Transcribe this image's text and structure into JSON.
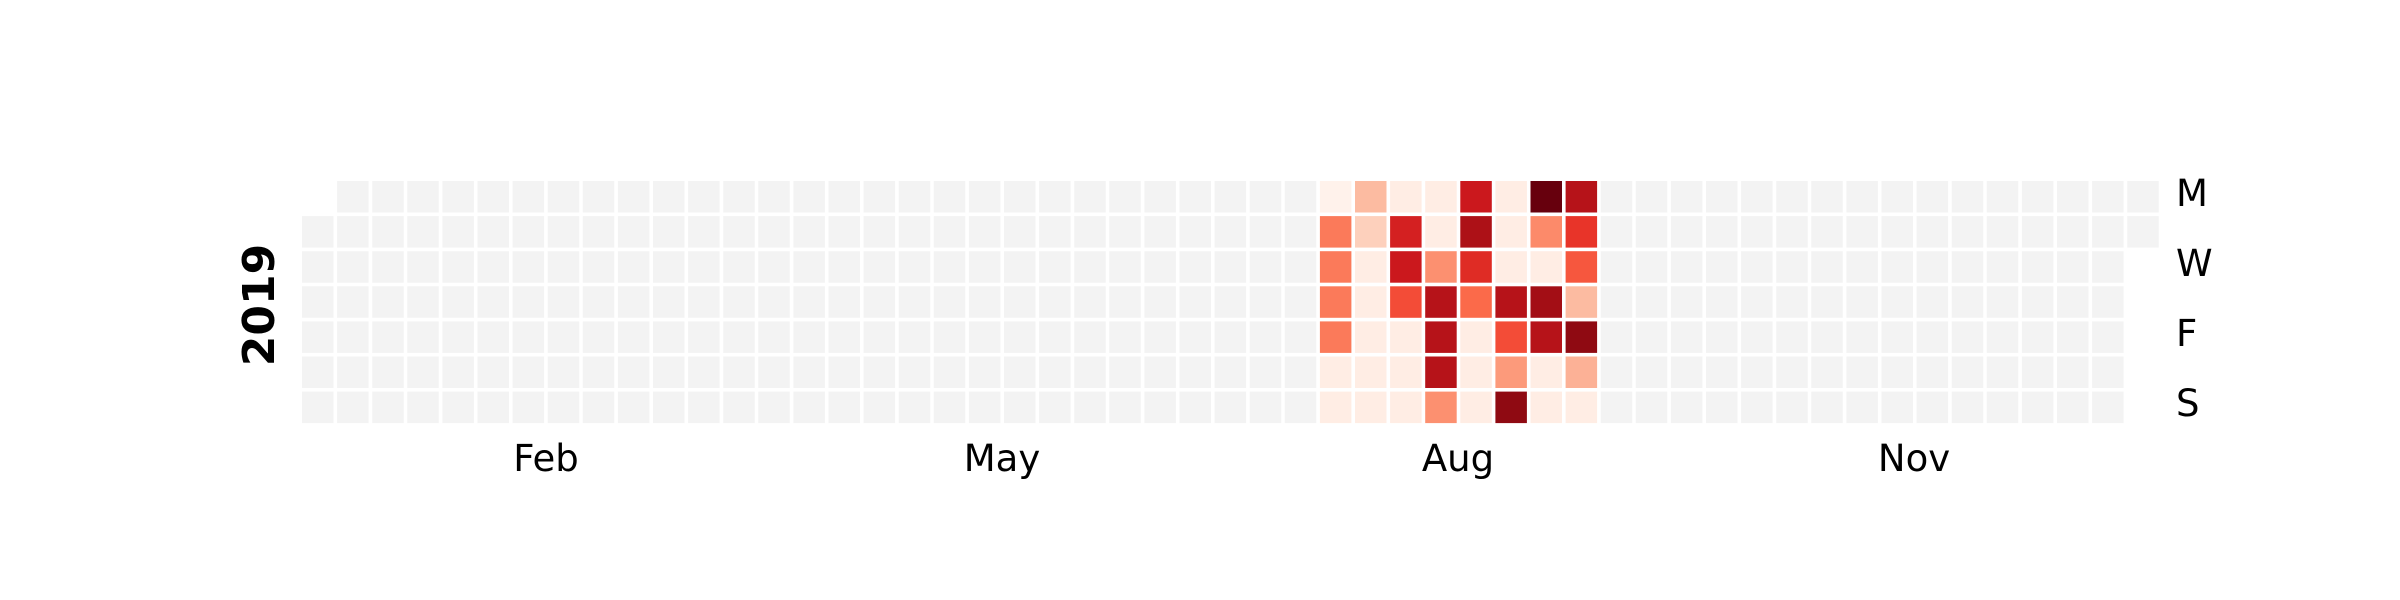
{
  "chart_data": {
    "type": "heatmap",
    "title": "",
    "year": "2019",
    "month_labels": [
      "Feb",
      "May",
      "Aug",
      "Nov"
    ],
    "day_labels": [
      "M",
      "W",
      "F",
      "S"
    ],
    "colormap": "Reds",
    "empty_color": "#f3f3f3",
    "active_weeks": {
      "start_week": 29,
      "rows": [
        [
          0.02,
          0.25,
          0.05,
          0.05,
          0.75,
          0.05,
          1.0,
          0.82
        ],
        [
          0.45,
          0.18,
          0.72,
          0.05,
          0.85,
          0.05,
          0.4,
          0.65
        ],
        [
          0.45,
          0.05,
          0.75,
          0.38,
          0.68,
          0.05,
          0.05,
          0.55
        ],
        [
          0.45,
          0.05,
          0.58,
          0.82,
          0.5,
          0.82,
          0.88,
          0.25
        ],
        [
          0.45,
          0.05,
          0.05,
          0.82,
          0.05,
          0.58,
          0.82,
          0.92
        ],
        [
          0.05,
          0.05,
          0.05,
          0.82,
          0.05,
          0.35,
          0.05,
          0.28
        ],
        [
          0.05,
          0.05,
          0.05,
          0.38,
          0.05,
          0.92,
          0.05,
          0.05
        ]
      ]
    }
  }
}
